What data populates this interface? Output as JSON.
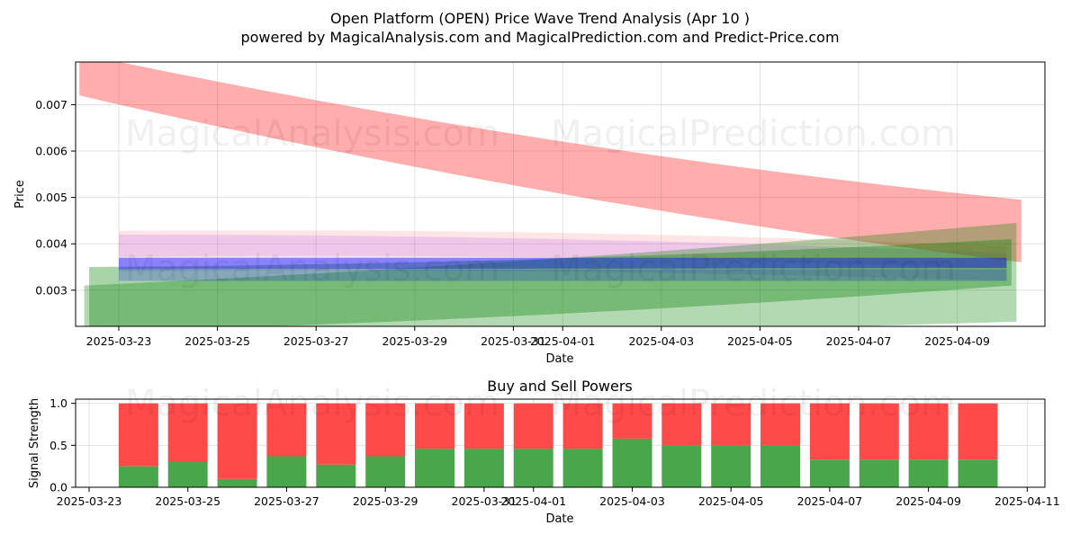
{
  "title_line1": "Open Platform (OPEN) Price Wave Trend Analysis (Apr 10 )",
  "title_line2": "powered by MagicalAnalysis.com and MagicalPrediction.com and Predict-Price.com",
  "watermarks": [
    "MagicalAnalysis.com",
    "MagicalPrediction.com"
  ],
  "colors": {
    "red": "#ff0000",
    "green": "#008000",
    "blue": "#0000ff",
    "purple": "#9933ff",
    "buy": "#4aa64a",
    "sell": "#ff4a4a"
  },
  "chart_data": [
    {
      "type": "area",
      "title": "",
      "xlabel": "Date",
      "ylabel": "Price",
      "xlim": [
        "2025-03-22.2",
        "2025-04-11.2"
      ],
      "ylim": [
        0.00222,
        0.00792
      ],
      "x_ticks": [
        "2025-03-23",
        "2025-03-25",
        "2025-03-27",
        "2025-03-29",
        "2025-03-31",
        "2025-04-01",
        "2025-04-03",
        "2025-04-05",
        "2025-04-07",
        "2025-04-09"
      ],
      "y_ticks": [
        "0.003",
        "0.004",
        "0.005",
        "0.006",
        "0.007"
      ],
      "bands": [
        {
          "name": "red wave main",
          "color": "red",
          "opacity": 0.32,
          "x": [
            -0.8,
            18.3
          ],
          "upper": [
            0.0081,
            0.00495
          ],
          "lower": [
            0.0072,
            0.0036
          ],
          "curve": -0.00028
        },
        {
          "name": "red wave faint",
          "color": "red",
          "opacity": 0.1,
          "x": [
            0.0,
            18.0
          ],
          "upper": [
            0.00428,
            0.00395
          ],
          "lower": [
            0.00372,
            0.00345
          ],
          "curve": 0.00012
        },
        {
          "name": "purple wave",
          "color": "purple",
          "opacity": 0.16,
          "x": [
            0.0,
            18.0
          ],
          "upper": [
            0.0042,
            0.0038
          ],
          "lower": [
            0.0034,
            0.0032
          ],
          "curve": 0.0001
        },
        {
          "name": "green wave low",
          "color": "green",
          "opacity": 0.3,
          "x": [
            -0.7,
            18.2
          ],
          "upper": [
            0.0031,
            0.00445
          ],
          "lower": [
            0.0021,
            0.00232
          ],
          "curve": -0.0001
        },
        {
          "name": "green wave high",
          "color": "green",
          "opacity": 0.34,
          "x": [
            -0.6,
            18.1
          ],
          "upper": [
            0.0035,
            0.0041
          ],
          "lower": [
            0.0021,
            0.0031
          ],
          "curve": -0.00012
        },
        {
          "name": "blue wave band",
          "color": "blue",
          "opacity": 0.42,
          "x": [
            0.0,
            18.0
          ],
          "upper": [
            0.0037,
            0.0037
          ],
          "lower": [
            0.00345,
            0.00348
          ],
          "curve": 0.0
        },
        {
          "name": "blue wave base",
          "color": "blue",
          "opacity": 0.2,
          "x": [
            0.0,
            18.0
          ],
          "upper": [
            0.00345,
            0.00345
          ],
          "lower": [
            0.0032,
            0.0032
          ],
          "curve": 0.0
        }
      ]
    },
    {
      "type": "bar",
      "title": "Buy and Sell Powers",
      "xlabel": "Date",
      "ylabel": "Signal Strength",
      "ylim": [
        0,
        1.05
      ],
      "x_ticks": [
        "2025-03-23",
        "2025-03-25",
        "2025-03-27",
        "2025-03-29",
        "2025-03-31",
        "2025-04-01",
        "2025-04-03",
        "2025-04-05",
        "2025-04-07",
        "2025-04-09",
        "2025-04-11"
      ],
      "y_ticks": [
        "0.0",
        "0.5",
        "1.0"
      ],
      "categories": [
        "2025-03-24",
        "2025-03-25",
        "2025-03-26",
        "2025-03-27",
        "2025-03-28",
        "2025-03-29",
        "2025-03-30",
        "2025-03-31",
        "2025-04-01",
        "2025-04-02",
        "2025-04-03",
        "2025-04-04",
        "2025-04-05",
        "2025-04-06",
        "2025-04-07",
        "2025-04-08",
        "2025-04-09",
        "2025-04-10"
      ],
      "series": [
        {
          "name": "Buy",
          "color": "buy",
          "values": [
            0.25,
            0.3,
            0.1,
            0.37,
            0.27,
            0.37,
            0.46,
            0.46,
            0.46,
            0.46,
            0.58,
            0.5,
            0.5,
            0.5,
            0.33,
            0.33,
            0.33,
            0.33
          ]
        },
        {
          "name": "Sell",
          "color": "sell",
          "values": [
            0.75,
            0.7,
            0.9,
            0.63,
            0.73,
            0.63,
            0.54,
            0.54,
            0.54,
            0.54,
            0.42,
            0.5,
            0.5,
            0.5,
            0.67,
            0.67,
            0.67,
            0.67
          ]
        }
      ]
    }
  ]
}
